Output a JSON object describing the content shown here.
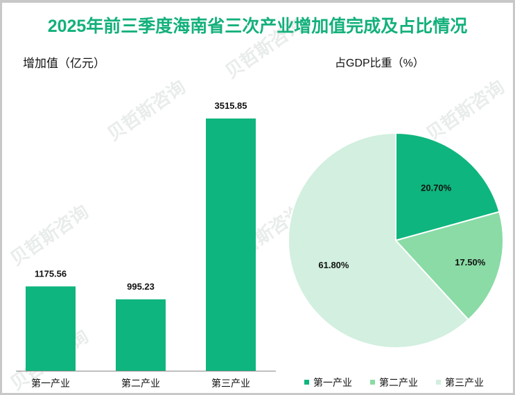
{
  "title": "2025年前三季度海南省三次产业增加值完成及占比情况",
  "colors": {
    "primary": "#0fb57e",
    "secondary": "#8adba5",
    "tertiary": "#d2efdf",
    "title": "#13b07c"
  },
  "watermark": "贝哲斯咨询 MARKET MONITOR",
  "chart_data": [
    {
      "type": "bar",
      "title": "增加值（亿元）",
      "categories": [
        "第一产业",
        "第二产业",
        "第三产业"
      ],
      "values": [
        1175.56,
        995.23,
        3515.85
      ],
      "labels": [
        "1175.56",
        "995.23",
        "3515.85"
      ],
      "ylim": [
        0,
        3515.85
      ]
    },
    {
      "type": "pie",
      "title": "占GDP比重（%）",
      "categories": [
        "第一产业",
        "第二产业",
        "第三产业"
      ],
      "values": [
        20.7,
        17.5,
        61.8
      ],
      "labels": [
        "20.70%",
        "17.50%",
        "61.80%"
      ],
      "legend": "bottom"
    }
  ]
}
